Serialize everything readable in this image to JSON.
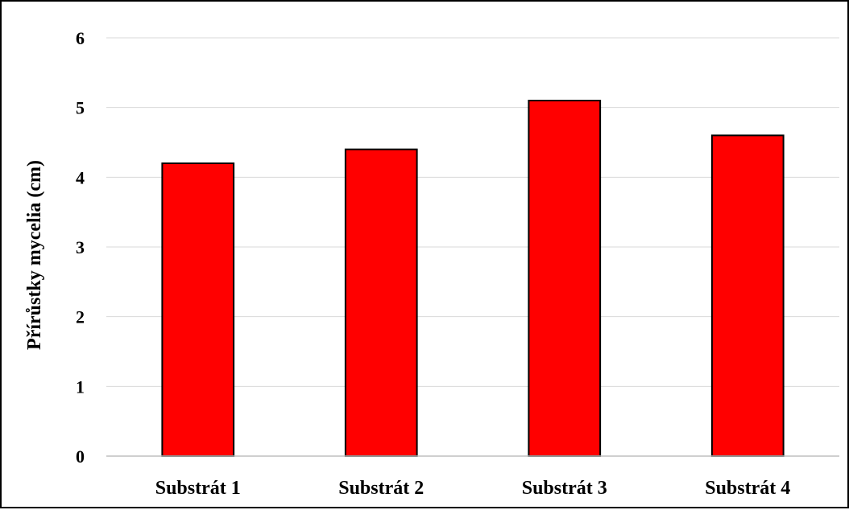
{
  "chart_data": {
    "type": "bar",
    "categories": [
      "Substrát 1",
      "Substrát 2",
      "Substrát 3",
      "Substrát 4"
    ],
    "values": [
      4.2,
      4.4,
      5.1,
      4.6
    ],
    "title": "",
    "xlabel": "",
    "ylabel": "Přírůstky mycelia (cm)",
    "ylim": [
      0,
      6
    ],
    "yticks": [
      "0",
      "1",
      "2",
      "3",
      "4",
      "5",
      "6"
    ],
    "grid": true,
    "legend": "none",
    "colors": {
      "bar_fill": "#ff0000",
      "bar_stroke": "#000000",
      "gridline": "#d9d9d9",
      "axis": "#bfbfbf"
    }
  }
}
